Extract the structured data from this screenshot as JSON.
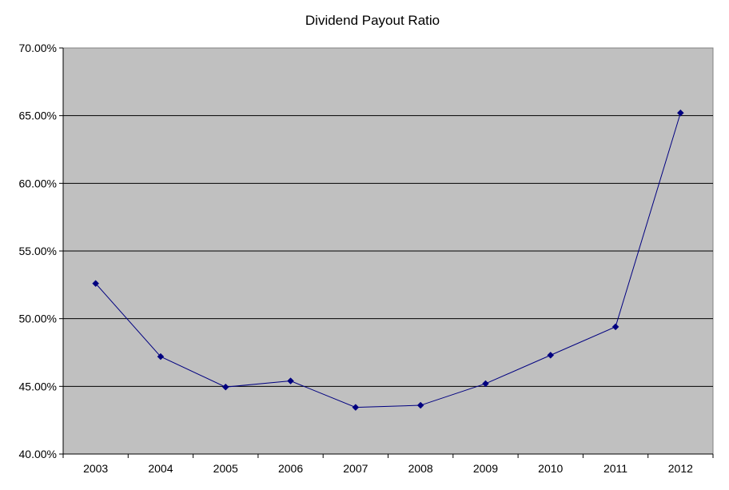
{
  "chart_data": {
    "type": "line",
    "title": "Dividend Payout Ratio",
    "xlabel": "",
    "ylabel": "",
    "categories": [
      "2003",
      "2004",
      "2005",
      "2006",
      "2007",
      "2008",
      "2009",
      "2010",
      "2011",
      "2012"
    ],
    "series": [
      {
        "values": [
          52.6,
          47.2,
          44.95,
          45.4,
          43.45,
          43.6,
          45.2,
          47.3,
          49.4,
          65.2
        ],
        "color": "#000080"
      }
    ],
    "ylim": [
      40,
      70
    ],
    "yticks": [
      40,
      45,
      50,
      55,
      60,
      65,
      70
    ],
    "ytick_labels": [
      "40.00%",
      "45.00%",
      "50.00%",
      "55.00%",
      "60.00%",
      "65.00%",
      "70.00%"
    ],
    "grid": true,
    "legend": "none",
    "colors": {
      "plot_background": "#c0c0c0",
      "gridline": "#000000",
      "line": "#000080"
    }
  }
}
